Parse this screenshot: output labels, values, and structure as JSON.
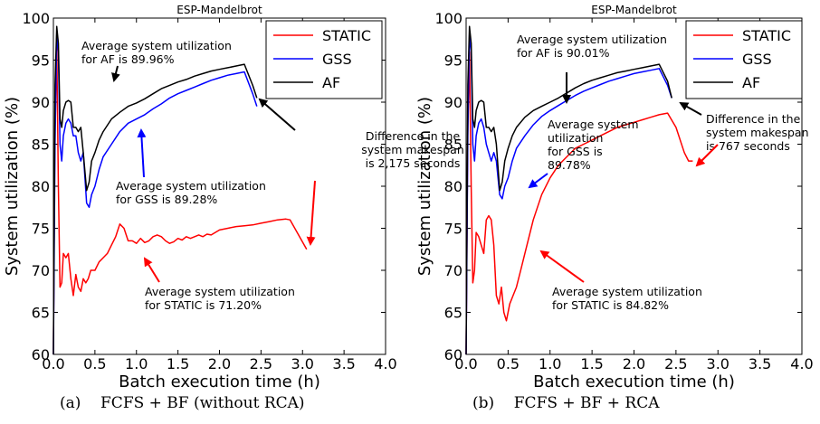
{
  "chart_data": [
    {
      "type": "line",
      "title": "ESP-Mandelbrot",
      "xlabel": "Batch execution time (h)",
      "ylabel": "System utilization (%)",
      "xlim": [
        0.0,
        4.0
      ],
      "ylim": [
        60,
        100
      ],
      "xticks": [
        "0.0",
        "0.5",
        "1.0",
        "1.5",
        "2.0",
        "2.5",
        "3.0",
        "3.5",
        "4.0"
      ],
      "yticks": [
        "60",
        "65",
        "70",
        "75",
        "80",
        "85",
        "90",
        "95",
        "100"
      ],
      "legend_position": "top-right",
      "caption": "(a)    FCFS + BF (without RCA)",
      "series": [
        {
          "name": "STATIC",
          "color": "#ff0000",
          "x": [
            0.0,
            0.02,
            0.04,
            0.06,
            0.08,
            0.1,
            0.12,
            0.15,
            0.18,
            0.21,
            0.24,
            0.27,
            0.3,
            0.33,
            0.36,
            0.39,
            0.42,
            0.45,
            0.5,
            0.55,
            0.6,
            0.65,
            0.7,
            0.75,
            0.8,
            0.85,
            0.9,
            0.95,
            1.0,
            1.05,
            1.1,
            1.15,
            1.2,
            1.25,
            1.3,
            1.35,
            1.4,
            1.45,
            1.5,
            1.55,
            1.6,
            1.65,
            1.7,
            1.75,
            1.8,
            1.85,
            1.9,
            1.95,
            2.0,
            2.1,
            2.2,
            2.3,
            2.4,
            2.5,
            2.6,
            2.7,
            2.8,
            2.85,
            3.05
          ],
          "y": [
            60,
            90,
            97,
            80,
            68,
            68.5,
            72,
            71.5,
            72,
            69,
            67,
            69.5,
            68,
            67.5,
            69,
            68.5,
            69,
            70,
            70,
            71,
            71.5,
            72,
            73,
            74,
            75.5,
            75,
            73.5,
            73.5,
            73.2,
            73.8,
            73.3,
            73.5,
            74,
            74.2,
            74,
            73.5,
            73.2,
            73.4,
            73.8,
            73.6,
            74,
            73.8,
            74,
            74.2,
            74,
            74.3,
            74.2,
            74.5,
            74.8,
            75,
            75.2,
            75.3,
            75.4,
            75.6,
            75.8,
            76,
            76.1,
            76,
            72.5
          ]
        },
        {
          "name": "GSS",
          "color": "#0000ff",
          "x": [
            0.0,
            0.02,
            0.04,
            0.06,
            0.08,
            0.1,
            0.12,
            0.15,
            0.18,
            0.21,
            0.24,
            0.27,
            0.3,
            0.33,
            0.36,
            0.4,
            0.43,
            0.46,
            0.5,
            0.55,
            0.6,
            0.7,
            0.8,
            0.9,
            1.0,
            1.1,
            1.2,
            1.3,
            1.4,
            1.5,
            1.6,
            1.7,
            1.8,
            1.9,
            2.0,
            2.1,
            2.2,
            2.3,
            2.4,
            2.45
          ],
          "y": [
            60,
            85,
            98,
            96,
            85,
            83,
            86,
            87.5,
            88,
            87.5,
            86,
            86,
            84,
            83,
            84,
            78,
            77.5,
            79,
            80,
            82,
            83.5,
            85,
            86.5,
            87.5,
            88,
            88.5,
            89.2,
            89.8,
            90.5,
            91,
            91.4,
            91.8,
            92.2,
            92.6,
            92.9,
            93.2,
            93.4,
            93.6,
            91,
            89.5
          ]
        },
        {
          "name": "AF",
          "color": "#000000",
          "x": [
            0.0,
            0.02,
            0.04,
            0.06,
            0.08,
            0.1,
            0.12,
            0.15,
            0.18,
            0.21,
            0.24,
            0.27,
            0.3,
            0.33,
            0.36,
            0.4,
            0.43,
            0.46,
            0.5,
            0.55,
            0.6,
            0.7,
            0.8,
            0.9,
            1.0,
            1.1,
            1.2,
            1.3,
            1.4,
            1.5,
            1.6,
            1.7,
            1.8,
            1.9,
            2.0,
            2.1,
            2.2,
            2.3,
            2.4,
            2.45
          ],
          "y": [
            60,
            92,
            99,
            97,
            88,
            87,
            89,
            90,
            90.2,
            90,
            87,
            87,
            86.5,
            87,
            84,
            79.5,
            80.5,
            83,
            84,
            85.5,
            86.5,
            88,
            88.8,
            89.5,
            89.9,
            90.4,
            91,
            91.6,
            92,
            92.4,
            92.7,
            93.1,
            93.4,
            93.7,
            93.9,
            94.1,
            94.3,
            94.5,
            92,
            90.5
          ]
        }
      ],
      "annotations": [
        {
          "lines": [
            "Average system utilization",
            "for AF is 89.96%"
          ],
          "color": "#000000"
        },
        {
          "lines": [
            "Average system utilization",
            "for GSS is 89.28%"
          ],
          "color": "#0000ff"
        },
        {
          "lines": [
            "Difference in the",
            "system makespan",
            "is 2,175 seconds"
          ],
          "color": "#000000"
        },
        {
          "lines": [
            "Average system utilization",
            "for STATIC is 71.20%"
          ],
          "color": "#ff0000"
        }
      ]
    },
    {
      "type": "line",
      "title": "ESP-Mandelbrot",
      "xlabel": "Batch execution time (h)",
      "ylabel": "System utilization (%)",
      "xlim": [
        0.0,
        4.0
      ],
      "ylim": [
        60,
        100
      ],
      "xticks": [
        "0.0",
        "0.5",
        "1.0",
        "1.5",
        "2.0",
        "2.5",
        "3.0",
        "3.5",
        "4.0"
      ],
      "yticks": [
        "60",
        "65",
        "70",
        "75",
        "80",
        "85",
        "90",
        "95",
        "100"
      ],
      "legend_position": "top-right",
      "caption": "(b)    FCFS + BF + RCA",
      "series": [
        {
          "name": "STATIC",
          "color": "#ff0000",
          "x": [
            0.0,
            0.02,
            0.04,
            0.06,
            0.08,
            0.1,
            0.12,
            0.15,
            0.18,
            0.21,
            0.24,
            0.27,
            0.3,
            0.33,
            0.36,
            0.39,
            0.42,
            0.45,
            0.48,
            0.52,
            0.56,
            0.6,
            0.65,
            0.7,
            0.8,
            0.9,
            1.0,
            1.1,
            1.2,
            1.3,
            1.4,
            1.5,
            1.6,
            1.7,
            1.8,
            1.9,
            2.0,
            2.1,
            2.2,
            2.3,
            2.4,
            2.5,
            2.6,
            2.65,
            2.7
          ],
          "y": [
            60,
            88,
            96,
            80,
            68.5,
            70,
            74.5,
            74,
            73,
            72,
            76,
            76.5,
            76,
            73,
            67,
            66,
            68,
            65,
            64,
            66,
            67,
            68,
            70,
            72,
            76,
            79,
            81,
            82.5,
            83.5,
            84.5,
            85,
            85.5,
            86,
            86.5,
            87,
            87.3,
            87.6,
            87.9,
            88.2,
            88.5,
            88.7,
            87,
            84,
            83,
            83
          ]
        },
        {
          "name": "GSS",
          "color": "#0000ff",
          "x": [
            0.0,
            0.02,
            0.04,
            0.06,
            0.08,
            0.1,
            0.12,
            0.15,
            0.18,
            0.21,
            0.24,
            0.27,
            0.3,
            0.33,
            0.36,
            0.4,
            0.43,
            0.46,
            0.5,
            0.55,
            0.6,
            0.7,
            0.8,
            0.9,
            1.0,
            1.1,
            1.2,
            1.3,
            1.4,
            1.5,
            1.6,
            1.7,
            1.8,
            1.9,
            2.0,
            2.1,
            2.2,
            2.3,
            2.4,
            2.45
          ],
          "y": [
            60,
            86,
            98,
            96,
            85,
            83,
            86,
            87.5,
            88,
            87,
            85,
            84,
            83,
            84,
            83,
            79,
            78.5,
            80,
            81,
            83,
            84.5,
            86,
            87.3,
            88.3,
            89,
            89.6,
            90.2,
            90.8,
            91.3,
            91.7,
            92.1,
            92.5,
            92.8,
            93.1,
            93.4,
            93.6,
            93.8,
            94,
            92,
            90.5
          ]
        },
        {
          "name": "AF",
          "color": "#000000",
          "x": [
            0.0,
            0.02,
            0.04,
            0.06,
            0.08,
            0.1,
            0.12,
            0.15,
            0.18,
            0.21,
            0.24,
            0.27,
            0.3,
            0.33,
            0.36,
            0.4,
            0.43,
            0.46,
            0.5,
            0.55,
            0.6,
            0.7,
            0.8,
            0.9,
            1.0,
            1.1,
            1.2,
            1.3,
            1.4,
            1.5,
            1.6,
            1.7,
            1.8,
            1.9,
            2.0,
            2.1,
            2.2,
            2.3,
            2.4,
            2.45
          ],
          "y": [
            60,
            92,
            99,
            97,
            88,
            87,
            89,
            90,
            90.2,
            90,
            87,
            87,
            86.5,
            87,
            85,
            79.5,
            80.5,
            83,
            84.5,
            86,
            87,
            88.2,
            89,
            89.5,
            90,
            90.5,
            91.1,
            91.7,
            92.2,
            92.6,
            92.9,
            93.2,
            93.5,
            93.7,
            93.9,
            94.1,
            94.3,
            94.5,
            92.5,
            90.5
          ]
        }
      ],
      "annotations": [
        {
          "lines": [
            "Average system utilization",
            "for AF is 90.01%"
          ],
          "color": "#000000"
        },
        {
          "lines": [
            "Average system",
            "utilization",
            "for GSS is",
            "89.78%"
          ],
          "color": "#0000ff"
        },
        {
          "lines": [
            "Difference in the",
            "system makespan",
            "is 767 seconds"
          ],
          "color": "#000000"
        },
        {
          "lines": [
            "Average system utilization",
            "for STATIC is 84.82%"
          ],
          "color": "#ff0000"
        }
      ]
    }
  ]
}
